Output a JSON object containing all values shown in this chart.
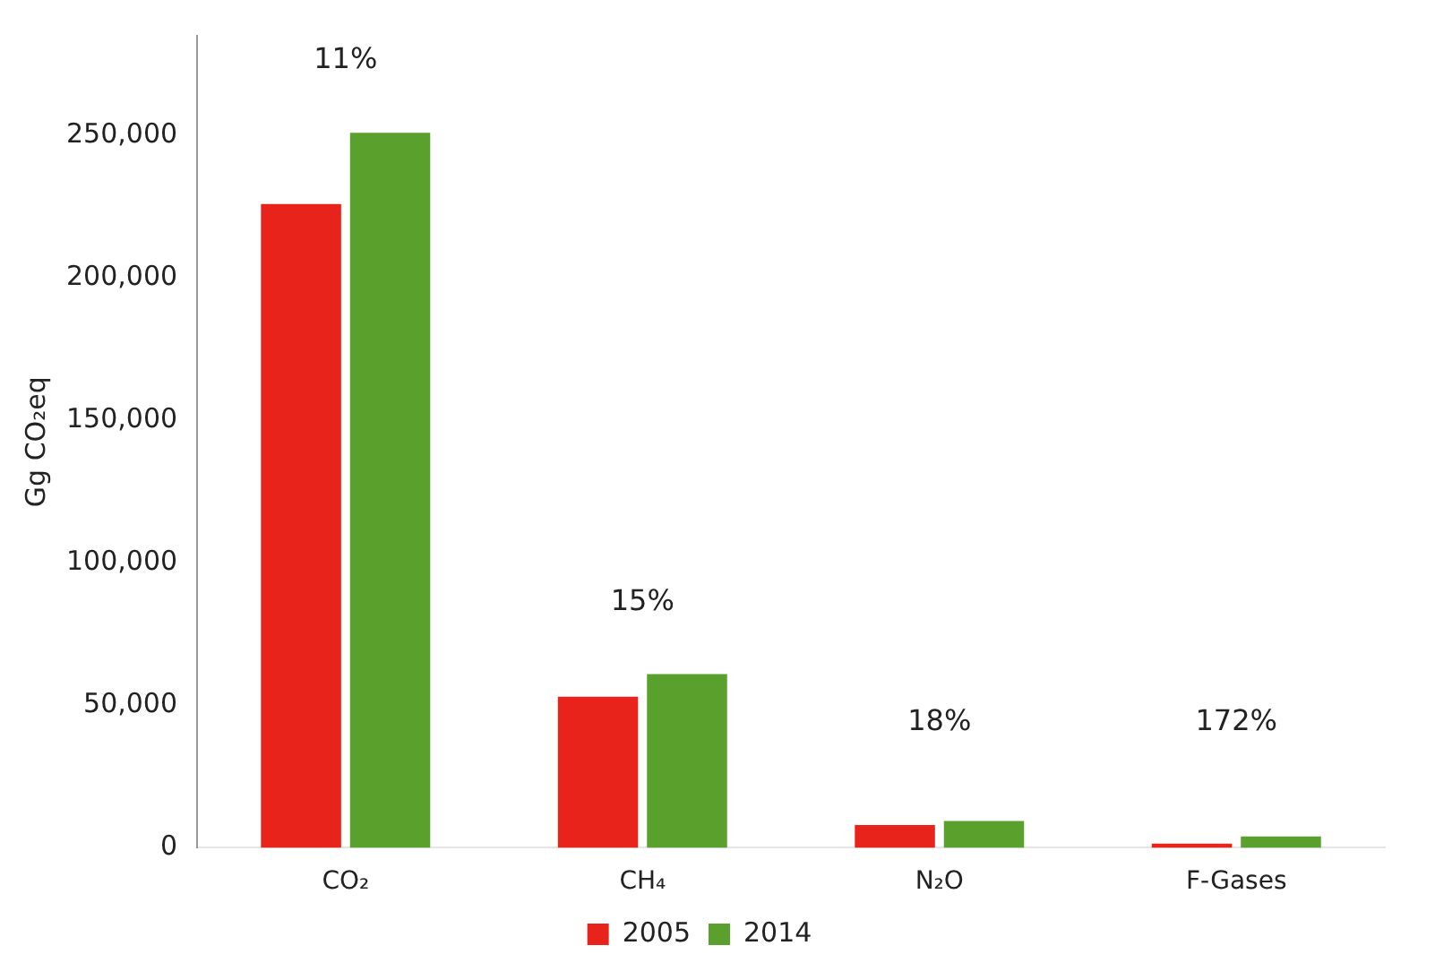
{
  "chart_data": {
    "type": "bar",
    "ylabel": "Gg CO₂eq",
    "categories": [
      "CO₂",
      "CH₄",
      "N₂O",
      "F-Gases"
    ],
    "series": [
      {
        "name": "2005",
        "color": "#e8231c",
        "values": [
          226000,
          53000,
          8000,
          1500
        ]
      },
      {
        "name": "2014",
        "color": "#5aa02c",
        "values": [
          251000,
          61000,
          9400,
          4000
        ]
      }
    ],
    "ylim": [
      0,
      285000
    ],
    "yticks": [
      {
        "value": 0,
        "label": "0"
      },
      {
        "value": 50000,
        "label": "50,000"
      },
      {
        "value": 100000,
        "label": "100,000"
      },
      {
        "value": 150000,
        "label": "150,000"
      },
      {
        "value": 200000,
        "label": "200,000"
      },
      {
        "value": 250000,
        "label": "250,000"
      }
    ],
    "grid": false,
    "legend": "bottom",
    "annotations": [
      "11%",
      "15%",
      "18%",
      "172%"
    ]
  }
}
